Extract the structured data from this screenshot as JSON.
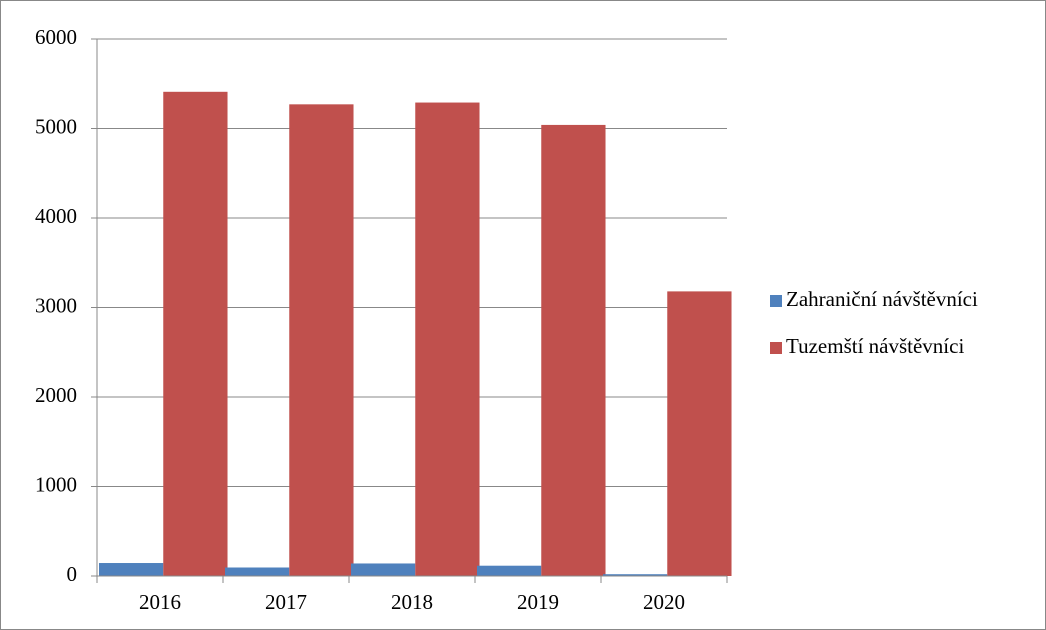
{
  "chart_data": {
    "type": "bar",
    "categories": [
      "2016",
      "2017",
      "2018",
      "2019",
      "2020"
    ],
    "series": [
      {
        "name": "Zahraniční návštěvníci",
        "color": "#4f81bd",
        "values": [
          145,
          95,
          140,
          115,
          20
        ]
      },
      {
        "name": "Tuzemští návštěvníci",
        "color": "#c0504d",
        "values": [
          5410,
          5270,
          5290,
          5040,
          3180
        ]
      }
    ],
    "ylim": [
      0,
      6000
    ],
    "yticks": [
      0,
      1000,
      2000,
      3000,
      4000,
      5000,
      6000
    ],
    "grid": true,
    "legend": "right"
  }
}
